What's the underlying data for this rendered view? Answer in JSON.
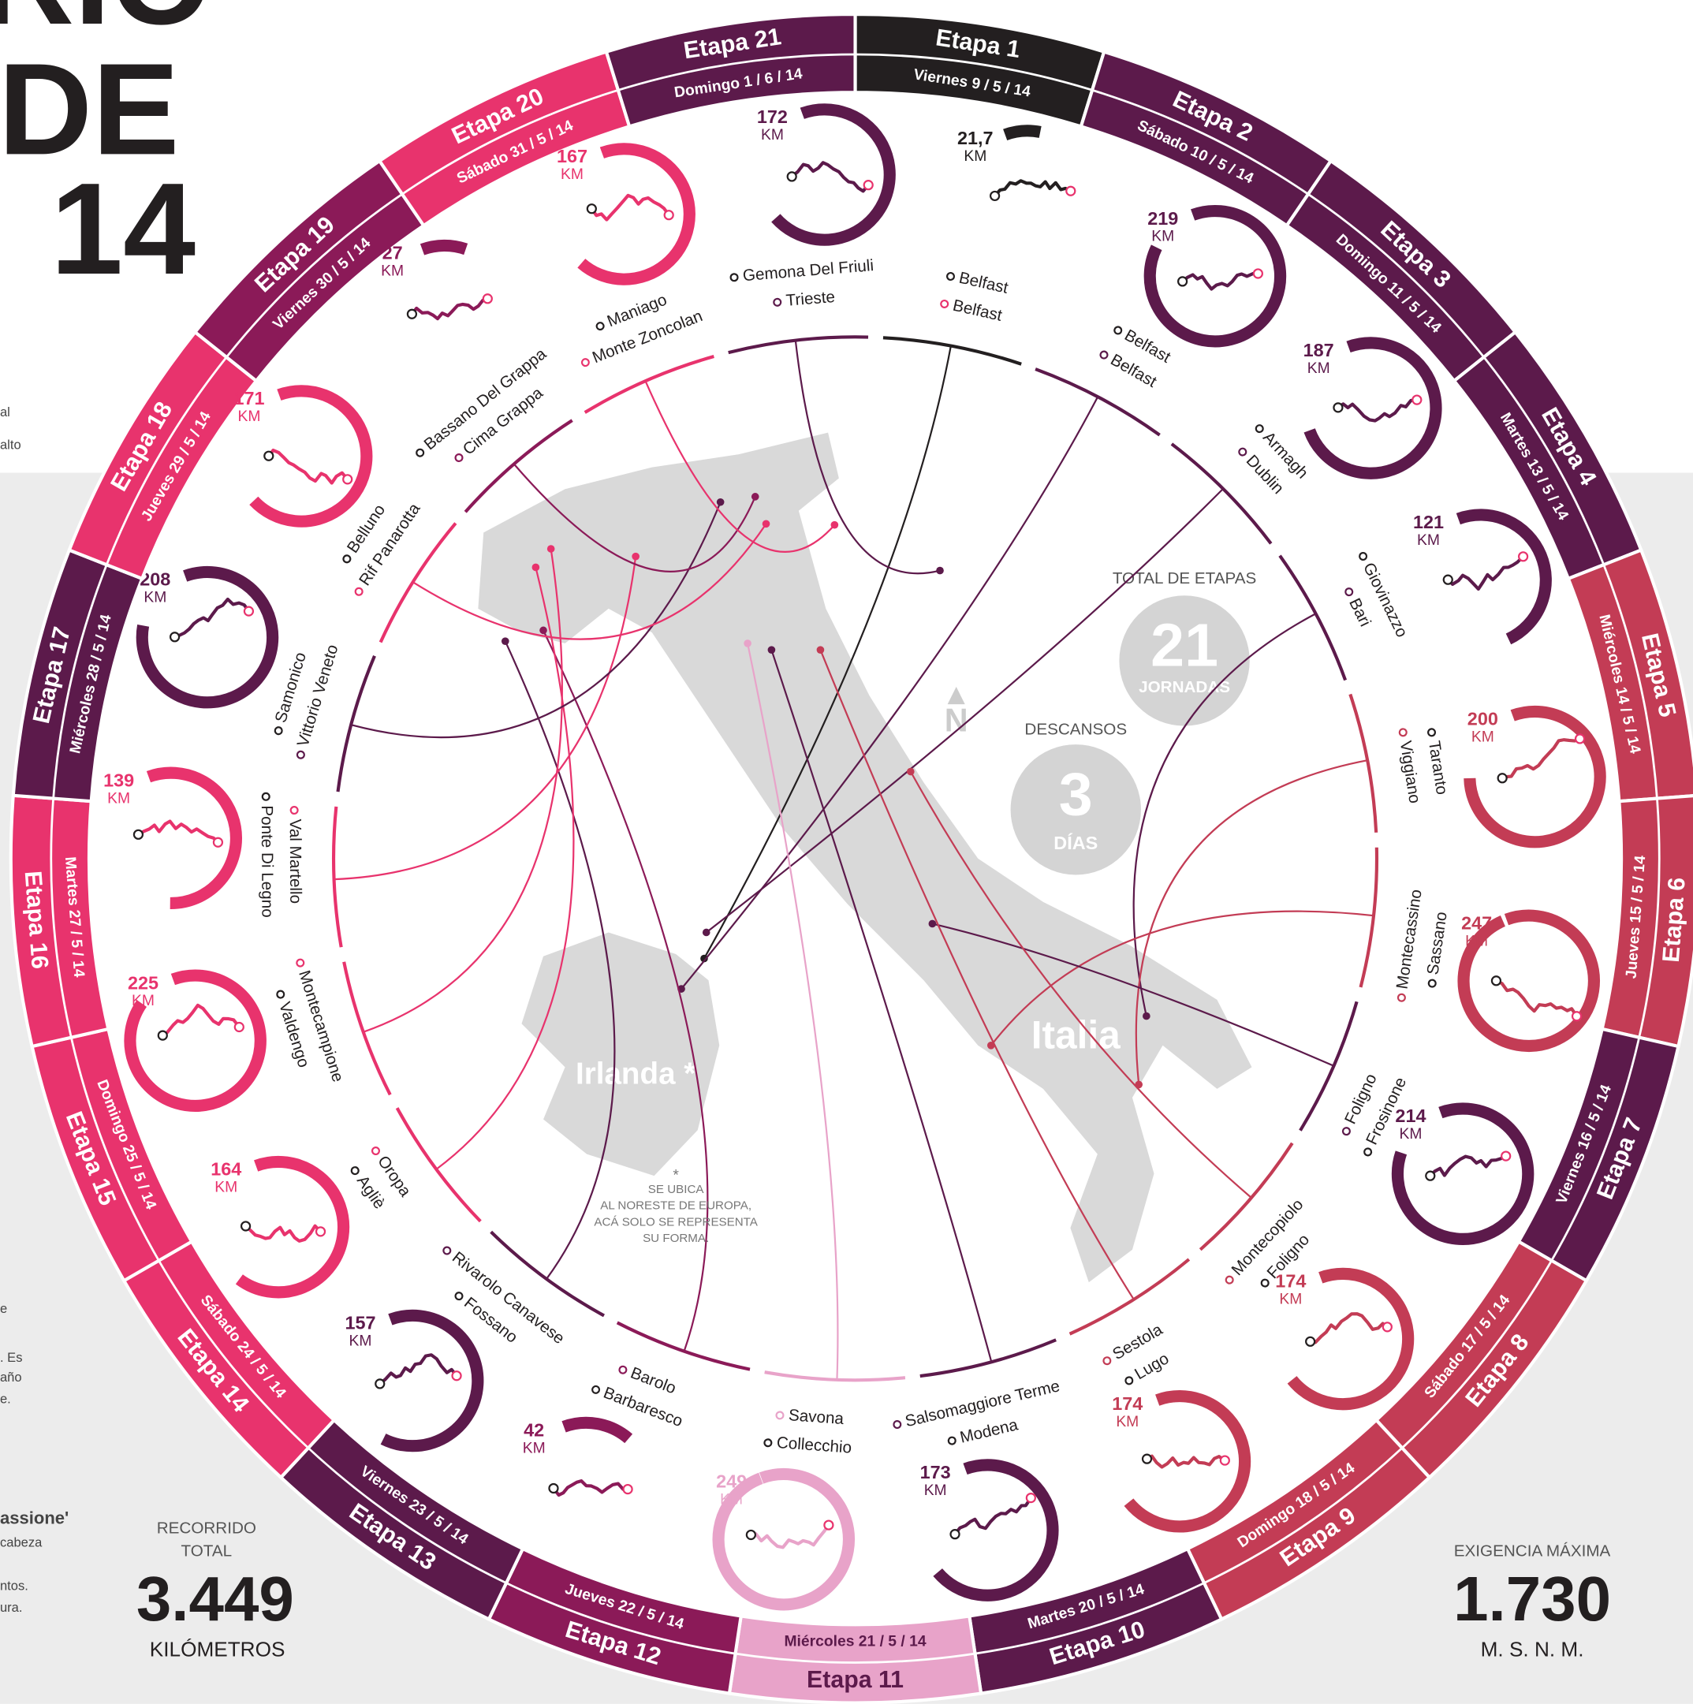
{
  "title": {
    "line1": "RIO",
    "line2": "DE",
    "line3": "14"
  },
  "side_notes": [
    "al",
    "alto",
    "e",
    ". Es",
    "año",
    "e.",
    "assione'",
    "cabeza",
    "ntos.",
    "ura."
  ],
  "unit": "KM",
  "stages": [
    {
      "name": "Etapa 1",
      "date": "Viernes 9 / 5 / 14",
      "km": 21.7,
      "km_label": "21,7",
      "start": "Belfast",
      "finish": "Belfast",
      "color": "#231f20"
    },
    {
      "name": "Etapa 2",
      "date": "Sábado 10 / 5 / 14",
      "km": 219,
      "start": "Belfast",
      "finish": "Belfast",
      "color": "#5c1a4b"
    },
    {
      "name": "Etapa 3",
      "date": "Domingo 11 / 5 / 14",
      "km": 187,
      "start": "Armagh",
      "finish": "Dublin",
      "color": "#5c1a4b"
    },
    {
      "name": "Etapa 4",
      "date": "Martes 13 / 5 / 14",
      "km": 121,
      "start": "Giovinazzo",
      "finish": "Bari",
      "color": "#5c1a4b"
    },
    {
      "name": "Etapa 5",
      "date": "Miércoles 14 / 5 / 14",
      "km": 200,
      "start": "Taranto",
      "finish": "Viggiano",
      "color": "#c33c55"
    },
    {
      "name": "Etapa 6",
      "date": "Jueves 15 / 5 / 14",
      "km": 247,
      "start": "Sassano",
      "finish": "Montecassino",
      "color": "#c33c55"
    },
    {
      "name": "Etapa 7",
      "date": "Viernes 16 / 5 / 14",
      "km": 214,
      "start": "Frosinone",
      "finish": "Foligno",
      "color": "#5c1a4b"
    },
    {
      "name": "Etapa 8",
      "date": "Sábado 17 / 5 / 14",
      "km": 174,
      "start": "Foligno",
      "finish": "Montecopiolo",
      "color": "#c33c55"
    },
    {
      "name": "Etapa 9",
      "date": "Domingo 18 / 5 / 14",
      "km": 174,
      "start": "Lugo",
      "finish": "Sestola",
      "color": "#c33c55"
    },
    {
      "name": "Etapa 10",
      "date": "Martes 20 / 5 / 14",
      "km": 173,
      "start": "Modena",
      "finish": "Salsomaggiore Terme",
      "color": "#5c1a4b"
    },
    {
      "name": "Etapa 11",
      "date": "Miércoles 21 / 5 / 14",
      "km": 249,
      "start": "Collecchio",
      "finish": "Savona",
      "color": "#e8a3c9"
    },
    {
      "name": "Etapa 12",
      "date": "Jueves 22 / 5 / 14",
      "km": 42,
      "start": "Barbaresco",
      "finish": "Barolo",
      "color": "#8b1a58"
    },
    {
      "name": "Etapa 13",
      "date": "Viernes 23 / 5 / 14",
      "km": 157,
      "start": "Fossano",
      "finish": "Rivarolo Canavese",
      "color": "#5c1a4b"
    },
    {
      "name": "Etapa 14",
      "date": "Sábado 24 / 5 / 14",
      "km": 164,
      "start": "Agliè",
      "finish": "Oropa",
      "color": "#e8336d"
    },
    {
      "name": "Etapa 15",
      "date": "Domingo 25 / 5 / 14",
      "km": 225,
      "start": "Valdengo",
      "finish": "Montecampione",
      "color": "#e8336d"
    },
    {
      "name": "Etapa 16",
      "date": "Martes 27 / 5 / 14",
      "km": 139,
      "start": "Ponte Di Legno",
      "finish": "Val Martello",
      "color": "#e8336d"
    },
    {
      "name": "Etapa 17",
      "date": "Miércoles 28 / 5 / 14",
      "km": 208,
      "start": "Samonico",
      "finish": "Vittorio Veneto",
      "color": "#5c1a4b"
    },
    {
      "name": "Etapa 18",
      "date": "Jueves 29 / 5 / 14",
      "km": 171,
      "start": "Belluno",
      "finish": "Rif Panarotta",
      "color": "#e8336d"
    },
    {
      "name": "Etapa 19",
      "date": "Viernes 30 / 5 / 14",
      "km": 27,
      "start": "Bassano Del Grappa",
      "finish": "Cima Grappa",
      "color": "#8b1a58"
    },
    {
      "name": "Etapa 20",
      "date": "Sábado 31 / 5 / 14",
      "km": 167,
      "start": "Maniago",
      "finish": "Monte Zoncolan",
      "color": "#e8336d"
    },
    {
      "name": "Etapa 21",
      "date": "Domingo 1 / 6 / 14",
      "km": 172,
      "start": "Gemona Del Friuli",
      "finish": "Trieste",
      "color": "#5c1a4b"
    }
  ],
  "stats": {
    "total_label": "TOTAL DE ETAPAS",
    "total_value": 21,
    "total_unit": "JORNADAS",
    "rest_label": "DESCANSOS",
    "rest_value": 3,
    "rest_unit": "DÍAS",
    "distance_label": [
      "RECORRIDO",
      "TOTAL"
    ],
    "distance_value": "3.449",
    "distance_unit": "KILÓMETROS",
    "altitude_label": "EXIGENCIA MÁXIMA",
    "altitude_value": "1.730",
    "altitude_unit": "M. S. N. M."
  },
  "map": {
    "ireland": "Irlanda *",
    "italy": "Italia",
    "north": "N",
    "note": [
      "*",
      "SE UBICA",
      "AL NORESTE DE EUROPA,",
      "ACÁ SOLO SE REPRESENTA",
      "SU FORMA."
    ]
  }
}
